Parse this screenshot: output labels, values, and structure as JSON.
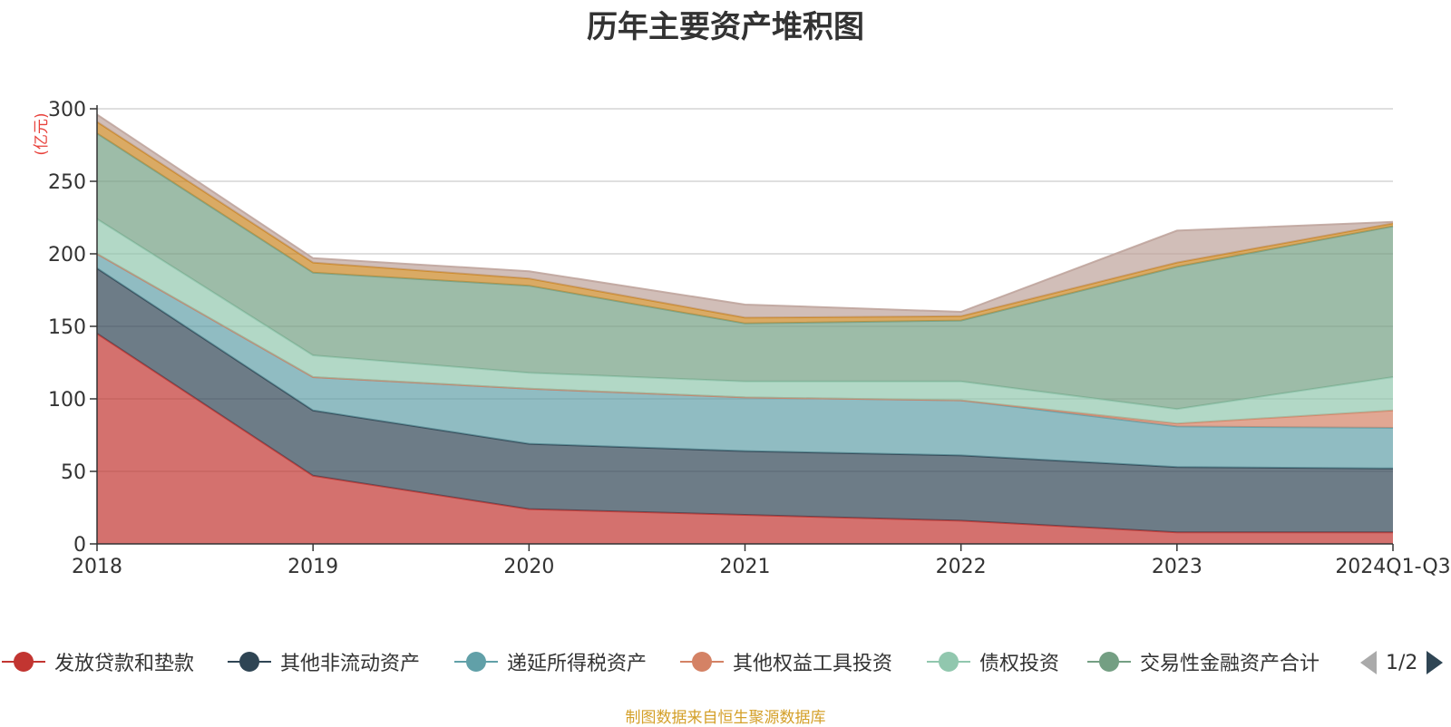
{
  "title": "历年主要资产堆积图",
  "source_note": "制图数据来自恒生聚源数据库",
  "legend_page": "1/2",
  "chart_data": {
    "type": "area",
    "stacked": true,
    "title": "历年主要资产堆积图",
    "ylabel": "(亿元)",
    "xlabel": "",
    "ylim": [
      0,
      300
    ],
    "yticks": [
      0,
      50,
      100,
      150,
      200,
      250,
      300
    ],
    "grid": true,
    "legend_position": "bottom",
    "categories": [
      "2018",
      "2019",
      "2020",
      "2021",
      "2022",
      "2023",
      "2024Q1-Q3"
    ],
    "series": [
      {
        "name": "发放贷款和垫款",
        "color": "#c23531",
        "values": [
          145,
          47,
          24,
          20,
          16,
          8,
          8
        ],
        "legend": true
      },
      {
        "name": "其他非流动资产",
        "color": "#2f4554",
        "values": [
          45,
          45,
          45,
          44,
          45,
          45,
          44
        ],
        "legend": true
      },
      {
        "name": "递延所得税资产",
        "color": "#61a0a8",
        "values": [
          10,
          23,
          38,
          37,
          38,
          28,
          28
        ],
        "legend": true
      },
      {
        "name": "其他权益工具投资",
        "color": "#d48265",
        "values": [
          0,
          0,
          0,
          0,
          0,
          2,
          12
        ],
        "legend": true
      },
      {
        "name": "债权投资",
        "color": "#91c7ae",
        "values": [
          24,
          15,
          11,
          11,
          13,
          10,
          23
        ],
        "legend": true
      },
      {
        "name": "交易性金融资产合计",
        "color": "#749f83",
        "values": [
          59,
          57,
          60,
          40,
          42,
          98,
          104
        ],
        "legend": true
      },
      {
        "name": "",
        "color": "#ca8622",
        "values": [
          8,
          7,
          5,
          4,
          3,
          3,
          2
        ],
        "legend": false
      },
      {
        "name": "",
        "color": "#bda29a",
        "values": [
          5,
          3,
          5,
          9,
          3,
          22,
          1
        ],
        "legend": false
      }
    ]
  }
}
